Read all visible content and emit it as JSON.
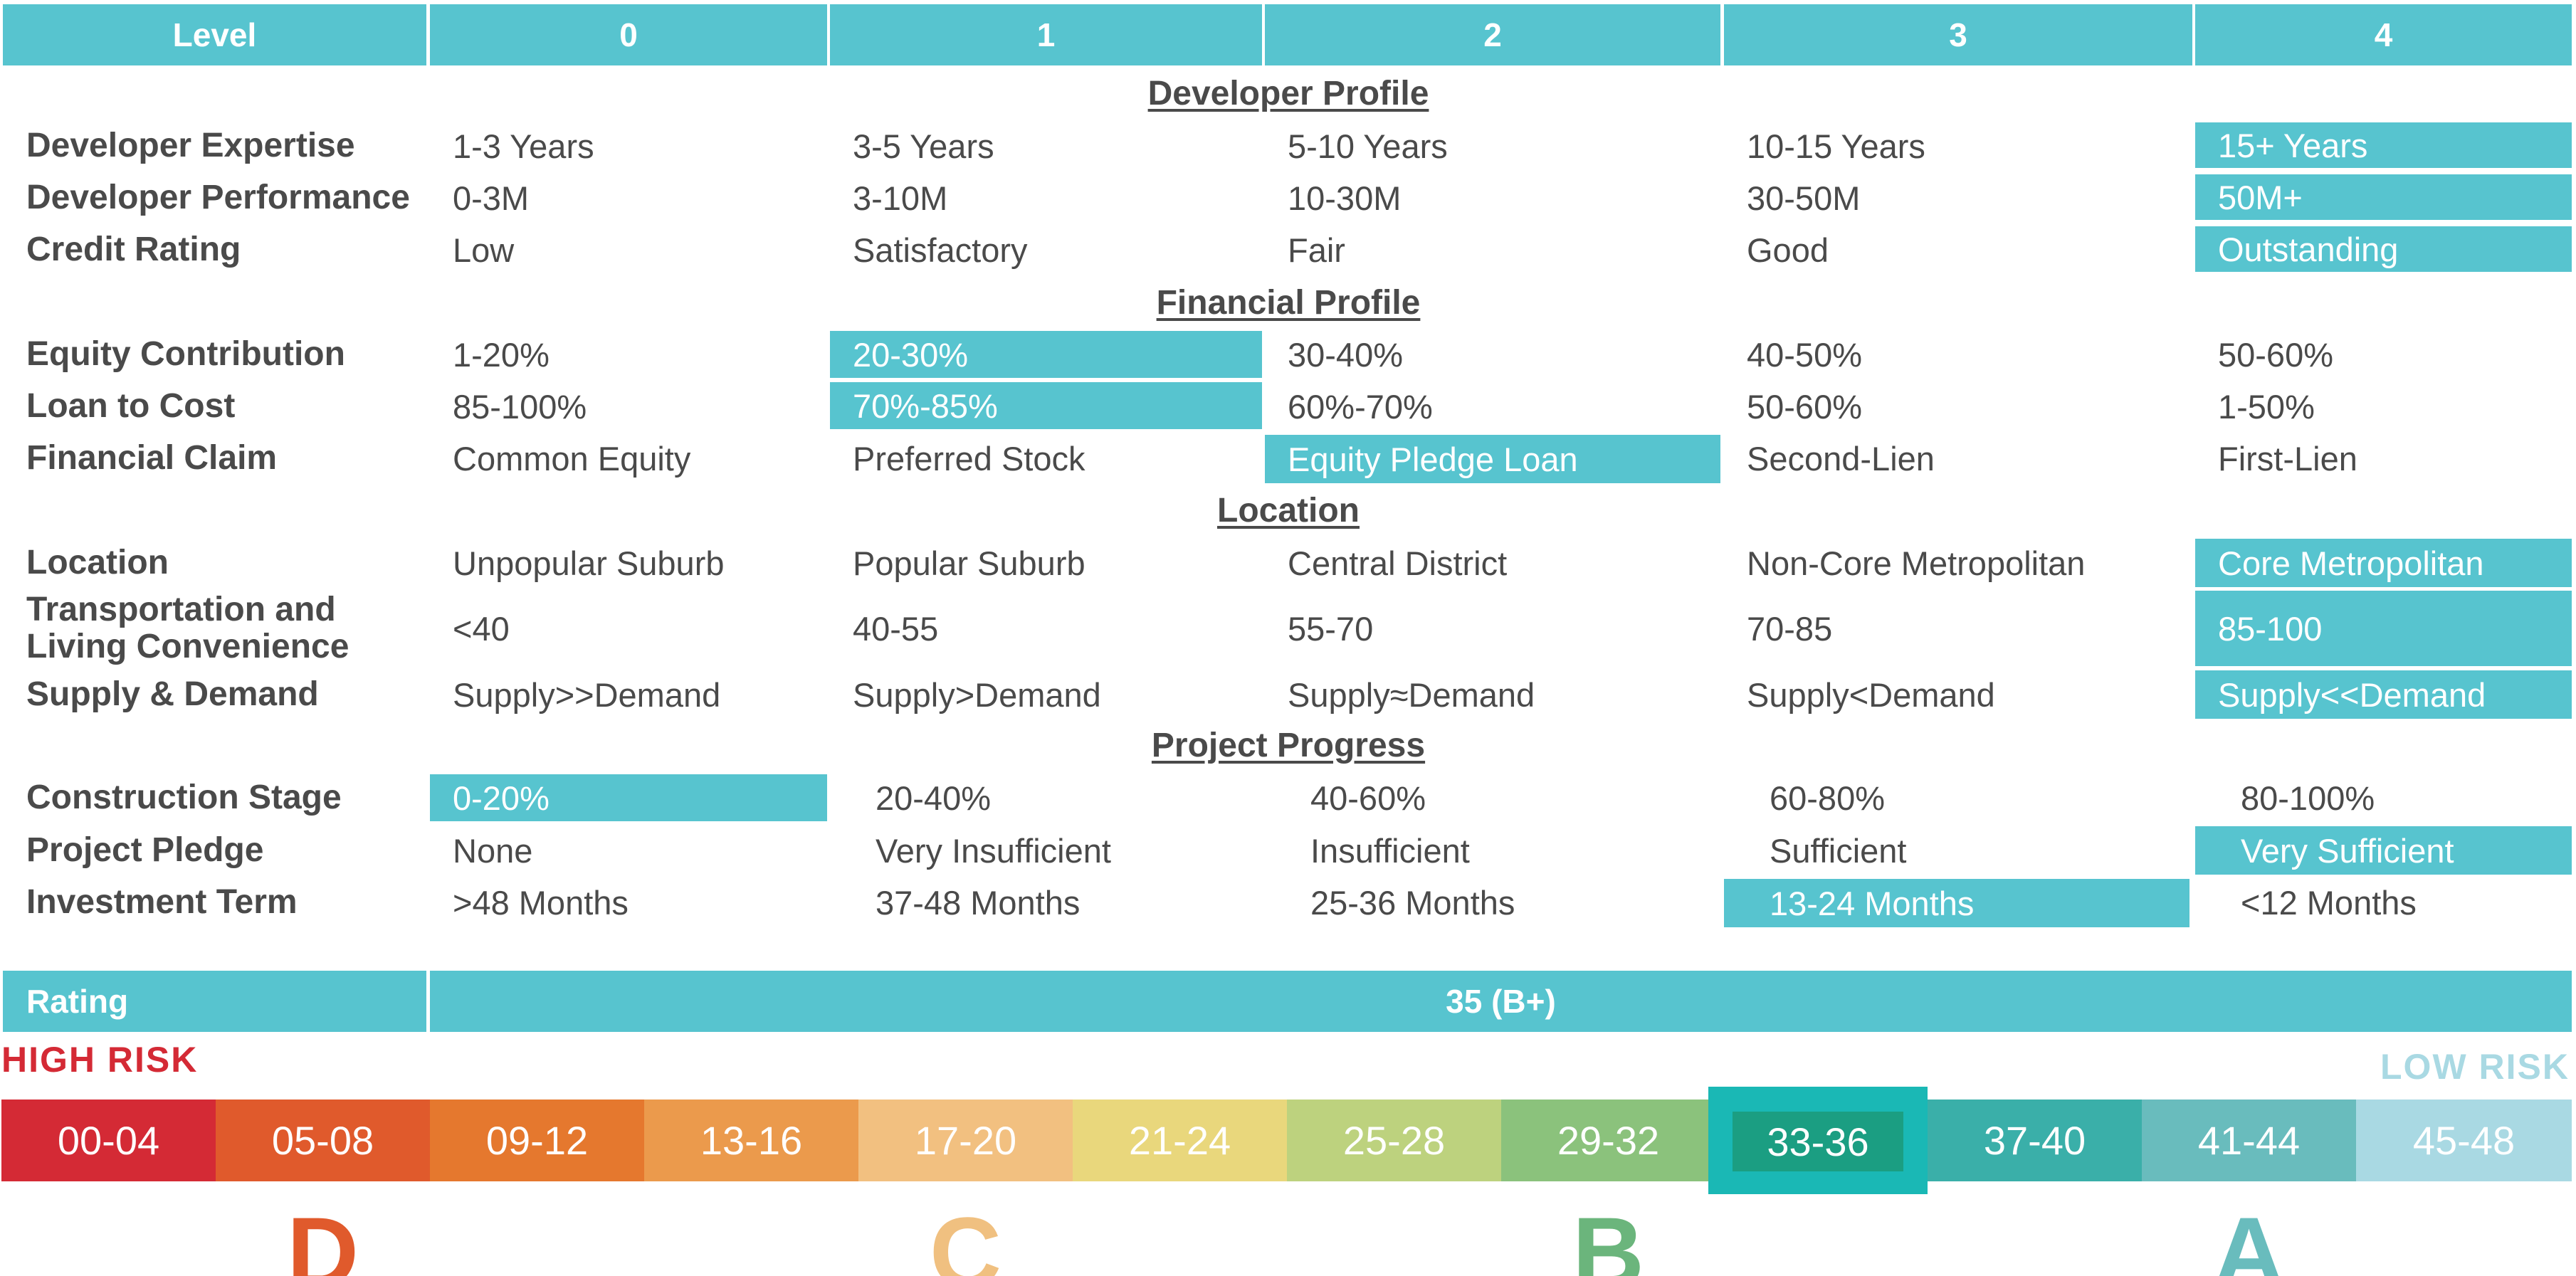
{
  "header": {
    "level_label": "Level",
    "levels": [
      "0",
      "1",
      "2",
      "3",
      "4"
    ]
  },
  "sections": {
    "developer_profile": "Developer Profile",
    "financial_profile": "Financial Profile",
    "location": "Location",
    "project_progress": "Project Progress"
  },
  "rows": [
    {
      "label": "Developer Expertise",
      "cells": [
        "1-3 Years",
        "3-5 Years",
        "5-10 Years",
        "10-15 Years",
        "15+ Years"
      ],
      "selected_level": 4
    },
    {
      "label": "Developer Performance",
      "cells": [
        "0-3M",
        "3-10M",
        "10-30M",
        "30-50M",
        "50M+"
      ],
      "selected_level": 4
    },
    {
      "label": "Credit Rating",
      "cells": [
        "Low",
        "Satisfactory",
        "Fair",
        "Good",
        "Outstanding"
      ],
      "selected_level": 4
    },
    {
      "label": "Equity Contribution",
      "cells": [
        "1-20%",
        "20-30%",
        "30-40%",
        "40-50%",
        "50-60%"
      ],
      "selected_level": 1
    },
    {
      "label": "Loan to Cost",
      "cells": [
        "85-100%",
        "70%-85%",
        "60%-70%",
        "50-60%",
        "1-50%"
      ],
      "selected_level": 1
    },
    {
      "label": "Financial Claim",
      "cells": [
        "Common Equity",
        "Preferred Stock",
        "Equity Pledge Loan",
        "Second-Lien",
        "First-Lien"
      ],
      "selected_level": 2
    },
    {
      "label": "Location",
      "cells": [
        "Unpopular Suburb",
        "Popular Suburb",
        "Central District",
        "Non-Core Metropolitan",
        "Core Metropolitan"
      ],
      "selected_level": 4
    },
    {
      "label_line1": "Transportation and",
      "label_line2": "Living Convenience",
      "cells": [
        "<40",
        "40-55",
        "55-70",
        "70-85",
        "85-100"
      ],
      "selected_level": 4
    },
    {
      "label": "Supply & Demand",
      "cells": [
        "Supply>>Demand",
        "Supply>Demand",
        "Supply≈Demand",
        "Supply<Demand",
        "Supply<<Demand"
      ],
      "selected_level": 4
    },
    {
      "label": "Construction Stage",
      "cells": [
        "0-20%",
        "20-40%",
        "40-60%",
        "60-80%",
        "80-100%"
      ],
      "selected_level": 0
    },
    {
      "label": "Project Pledge",
      "cells": [
        "None",
        "Very Insufficient",
        "Insufficient",
        "Sufficient",
        "Very Sufficient"
      ],
      "selected_level": 4
    },
    {
      "label": "Investment Term",
      "cells": [
        ">48 Months",
        "37-48 Months",
        "25-36 Months",
        "13-24 Months",
        "<12 Months"
      ],
      "selected_level": 3
    }
  ],
  "rating": {
    "label": "Rating",
    "value": "35 (B+)"
  },
  "risk": {
    "high": "HIGH RISK",
    "low": "LOW RISK"
  },
  "scale": {
    "bands": [
      "00-04",
      "05-08",
      "09-12",
      "13-16",
      "17-20",
      "21-24",
      "25-28",
      "29-32",
      "33-36",
      "37-40",
      "41-44",
      "45-48"
    ],
    "colors": [
      "#d42a35",
      "#e05a2c",
      "#e5782e",
      "#eb9a4c",
      "#f2c080",
      "#e9d77c",
      "#bdd27e",
      "#8bc27c",
      "#1b9e82",
      "#3aafa9",
      "#69bcbd",
      "#a9d9e3"
    ],
    "selected_band": "33-36",
    "selected_color": "#1ab8b5"
  },
  "grades": [
    "D",
    "C",
    "B",
    "A"
  ],
  "colors": {
    "accent": "#57c4cf",
    "high_risk": "#d42a35",
    "low_risk": "#a9d9e3",
    "grade_d": "#e05a2c",
    "grade_c": "#f0c080",
    "grade_b": "#6bb57c",
    "grade_a": "#69bcbd"
  }
}
